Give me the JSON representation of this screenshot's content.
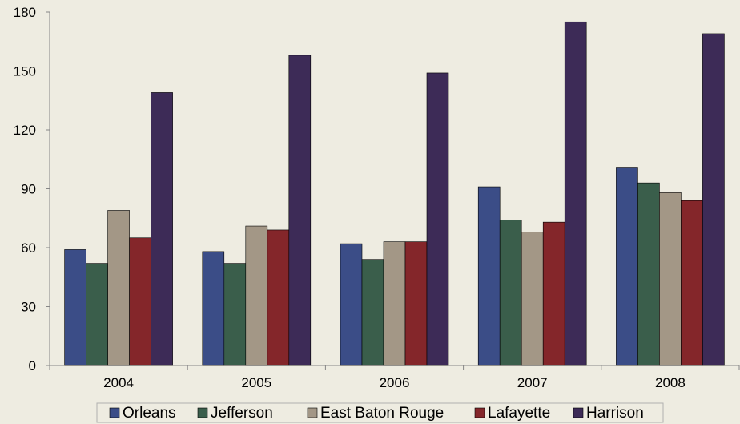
{
  "chart_data": {
    "type": "bar",
    "title": "",
    "xlabel": "",
    "ylabel": "",
    "categories": [
      "2004",
      "2005",
      "2006",
      "2007",
      "2008"
    ],
    "ylim": [
      0,
      180
    ],
    "yticks": [
      0,
      30,
      60,
      90,
      120,
      150,
      180
    ],
    "grid": false,
    "legend": "bottom",
    "series": [
      {
        "name": "Orleans",
        "color": "#3b4d87",
        "values": [
          59,
          58,
          62,
          91,
          101
        ]
      },
      {
        "name": "Jefferson",
        "color": "#3a5e4b",
        "values": [
          52,
          52,
          54,
          74,
          93
        ]
      },
      {
        "name": "East Baton Rouge",
        "color": "#a39786",
        "values": [
          79,
          71,
          63,
          68,
          88
        ]
      },
      {
        "name": "Lafayette",
        "color": "#84262a",
        "values": [
          65,
          69,
          63,
          73,
          84
        ]
      },
      {
        "name": "Harrison",
        "color": "#3d2b57",
        "values": [
          139,
          158,
          149,
          175,
          169
        ]
      }
    ]
  }
}
